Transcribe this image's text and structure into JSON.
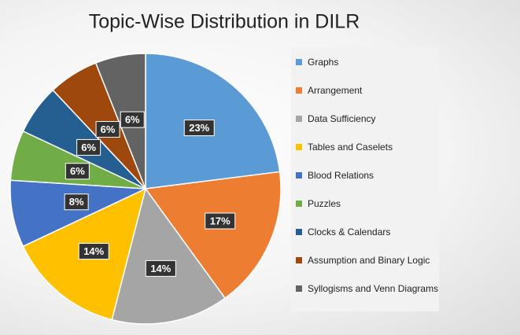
{
  "chart_data": {
    "type": "pie",
    "title": "Topic-Wise Distribution in DILR",
    "categories": [
      "Graphs",
      "Arrangement",
      "Data Sufficiency",
      "Tables and Caselets",
      "Blood Relations",
      "Puzzles",
      "Clocks & Calendars",
      "Assumption and Binary Logic",
      "Syllogisms and Venn Diagrams"
    ],
    "values": [
      23,
      17,
      14,
      14,
      8,
      6,
      6,
      6,
      6
    ],
    "value_labels": [
      "23%",
      "17%",
      "14%",
      "14%",
      "8%",
      "6%",
      "6%",
      "6%",
      "6%"
    ],
    "colors": [
      "#5b9bd5",
      "#ed7d31",
      "#a5a5a5",
      "#ffc000",
      "#4472c4",
      "#70ad47",
      "#255e91",
      "#9e480e",
      "#636363"
    ],
    "legend_position": "right"
  }
}
